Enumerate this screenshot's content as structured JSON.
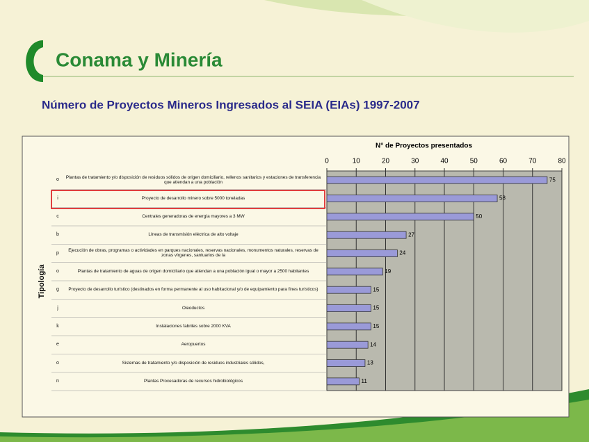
{
  "header": {
    "title": "Conama y Minería",
    "subtitle": "Número de Proyectos Mineros Ingresados al SEIA (EIAs) 1997-2007"
  },
  "chart_data": {
    "type": "barh",
    "xlabel": "N° de Proyectos presentados",
    "ylabel": "Tipología",
    "codes": [
      "o",
      "i",
      "c",
      "b",
      "p",
      "o",
      "g",
      "j",
      "k",
      "e",
      "o",
      "n"
    ],
    "categories": [
      "Plantas de tratamiento y/o disposición de residuos sólidos de origen domiciliario, rellenos sanitarios y estaciones de transferencia que atiendan a una población",
      "Proyecto de desarrollo minero sobre 5000 toneladas",
      "Centrales generadoras de energía mayores a 3 MW",
      "Líneas de transmisión eléctrica de alto voltaje",
      "Ejecución de obras, programas o actividades en parques nacionales, reservas nacionales, monumentos naturales, reservas de zonas vírgenes, santuarios de la",
      "Plantas de tratamiento de aguas de origen domiciliario que atiendan a una población igual o mayor a 2500 habitantes",
      "Proyecto de desarrollo turístico (destinados en forma permanente al uso habitacional y/o de equipamiento para fines turísticos)",
      "Oleoductos",
      "Instalaciones fabriles sobre 2000 KVA",
      "Aeropuertos",
      "Sistemas de tratamiento y/o disposición de residuos industriales sólidos,",
      "Plantas Procesadoras de recursos hidrobiológicos"
    ],
    "values": [
      75,
      58,
      50,
      27,
      24,
      19,
      15,
      15,
      15,
      14,
      13,
      11
    ],
    "color": "#9a9ad8",
    "xlim": [
      0,
      80
    ],
    "xticks": [
      0,
      10,
      20,
      30,
      40,
      50,
      60,
      70,
      80
    ],
    "grid": true
  }
}
